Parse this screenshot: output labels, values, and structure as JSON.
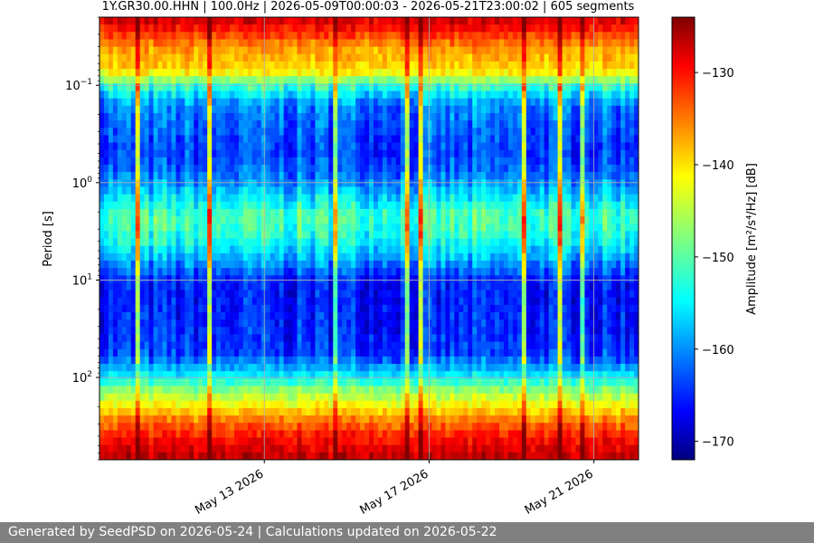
{
  "chart_data": {
    "type": "heatmap",
    "title": "1Y.GR30.00.HHN | 100.0Hz | 2026-05-09T00:00:03 - 2026-05-21T23:00:02 | 605 segments",
    "ylabel": "Period [s]",
    "yscale": "log",
    "yticks": [
      {
        "value": 0.1,
        "base": "10",
        "exp": "−1"
      },
      {
        "value": 1,
        "base": "10",
        "exp": "0"
      },
      {
        "value": 10,
        "base": "10",
        "exp": "1"
      },
      {
        "value": 100,
        "base": "10",
        "exp": "2"
      }
    ],
    "ylim": [
      0.02,
      700
    ],
    "xlim": [
      "2026-05-09",
      "2026-05-22T02:00"
    ],
    "xticks": [
      "May 13 2026",
      "May 17 2026",
      "May 21 2026"
    ],
    "colorbar": {
      "label": "Amplitude [m²/s⁴/Hz] [dB]",
      "range": [
        -172,
        -124
      ],
      "ticks": [
        -130,
        -140,
        -150,
        -160,
        -170
      ],
      "colormap": "jet"
    },
    "grid": true,
    "colors": {
      "footer_bg": "#808080"
    }
  },
  "footer": {
    "text": "Generated by SeedPSD on 2026-05-24 | Calculations updated on 2026-05-22"
  }
}
